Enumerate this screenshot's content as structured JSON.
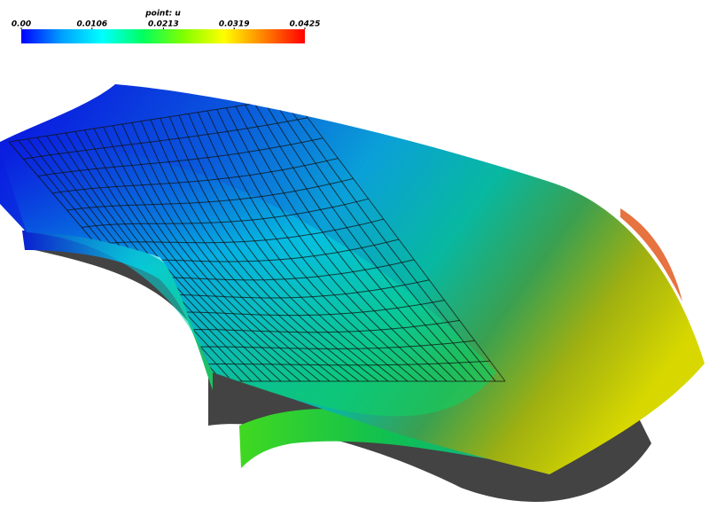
{
  "colorbar": {
    "title": "point: u",
    "range": [
      0,
      0.0425
    ],
    "ticks": [
      {
        "value": 0,
        "label": "0.00"
      },
      0.0106,
      0.0213,
      0.0319,
      0.0425
    ],
    "colors": [
      "#0000ff",
      "#00a0ff",
      "#00ffff",
      "#00ff60",
      "#80ff00",
      "#ffff00",
      "#ff8000",
      "#ff0000"
    ]
  }
}
